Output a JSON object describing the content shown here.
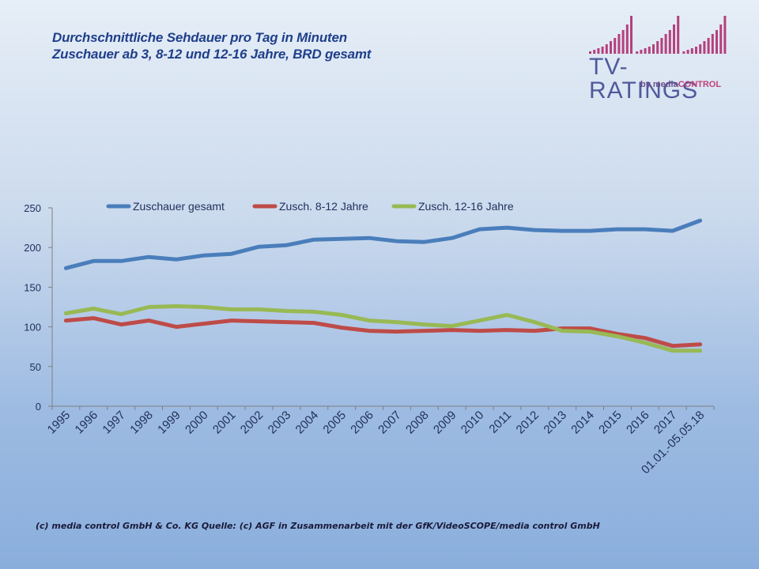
{
  "header": {
    "title_line1": "Durchschnittliche Sehdauer pro Tag in Minuten",
    "title_line2": "Zuschauer ab 3, 8-12 und 12-16 Jahre, BRD gesamt"
  },
  "logo": {
    "main": "TV-RATINGS",
    "by": "by media",
    "control": "CONTROL",
    "colors": {
      "bars": "#b5407d",
      "text": "#4f5a9c"
    }
  },
  "footer": {
    "text": "(c) media control GmbH & Co. KG Quelle: (c) AGF in Zusammenarbeit mit der GfK/VideoSCOPE/media control GmbH"
  },
  "chart_data": {
    "type": "line",
    "title": "",
    "xlabel": "",
    "ylabel": "",
    "ylim": [
      0,
      250
    ],
    "yticks": [
      0,
      50,
      100,
      150,
      200,
      250
    ],
    "grid": false,
    "legend_position": "top",
    "categories": [
      "1995",
      "1996",
      "1997",
      "1998",
      "1999",
      "2000",
      "2001",
      "2002",
      "2003",
      "2004",
      "2005",
      "2006",
      "2007",
      "2008",
      "2009",
      "2010",
      "2011",
      "2012",
      "2013",
      "2014",
      "2015",
      "2016",
      "2017",
      "01.01.-05.05.18"
    ],
    "series": [
      {
        "name": "Zuschauer gesamt",
        "color": "#4a7ebb",
        "values": [
          174,
          183,
          183,
          188,
          185,
          190,
          192,
          201,
          203,
          210,
          211,
          212,
          208,
          207,
          212,
          223,
          225,
          222,
          221,
          221,
          223,
          223,
          221,
          234
        ]
      },
      {
        "name": "Zusch. 8-12 Jahre",
        "color": "#be4b48",
        "values": [
          108,
          111,
          103,
          108,
          100,
          104,
          108,
          107,
          106,
          105,
          99,
          95,
          94,
          95,
          96,
          95,
          96,
          95,
          98,
          98,
          91,
          86,
          76,
          78
        ]
      },
      {
        "name": "Zusch. 12-16 Jahre",
        "color": "#98b954",
        "values": [
          117,
          123,
          116,
          125,
          126,
          125,
          122,
          122,
          120,
          119,
          115,
          108,
          106,
          103,
          101,
          108,
          115,
          106,
          95,
          94,
          88,
          80,
          70,
          70
        ]
      }
    ]
  }
}
